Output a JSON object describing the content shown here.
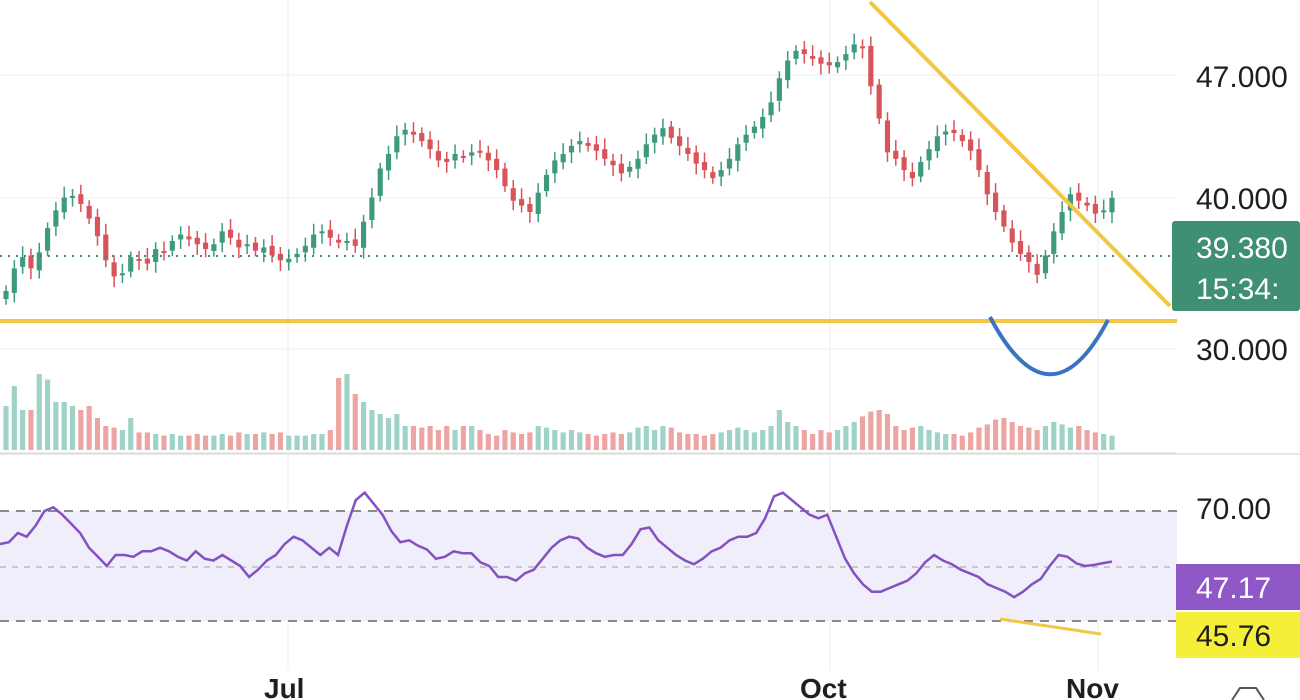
{
  "chart_data": [
    {
      "type": "candlestick",
      "title": "",
      "price_axis_ticks": [
        "47.000",
        "40.000",
        "30.000"
      ],
      "time_axis_ticks": [
        "Jul",
        "Oct",
        "Nov"
      ],
      "last_price_label": "39.380",
      "countdown_label": "15:34:",
      "colors": {
        "up": "#3e9a7f",
        "down": "#d9545a",
        "vol_up": "#9fd3c8",
        "vol_down": "#eda5a3",
        "price_badge": "#3e8f73",
        "trendline": "#f2c744",
        "arc": "#3a73c2"
      },
      "closes": [
        33.6,
        35,
        35.7,
        35,
        36,
        37.5,
        38.6,
        39.4,
        39.5,
        39,
        38.1,
        37,
        35.5,
        34.5,
        34.7,
        35.7,
        35.5,
        35.3,
        36.2,
        36,
        36.7,
        37.1,
        36.8,
        36.5,
        36.2,
        36.5,
        37.3,
        36.9,
        36.3,
        36.5,
        36.1,
        36.3,
        35.8,
        35.5,
        35.6,
        35.9,
        36.4,
        37.1,
        37.3,
        36.9,
        36.6,
        36.7,
        36.4,
        37.9,
        39.4,
        41.2,
        42.1,
        43.2,
        43.6,
        43.3,
        42.9,
        42.4,
        41.7,
        41.6,
        42.1,
        41.9,
        42.2,
        42.3,
        41.7,
        41.1,
        40.1,
        39.2,
        38.9,
        38.5,
        39.7,
        40.8,
        41.7,
        42.1,
        42.6,
        42.9,
        42.6,
        42.3,
        41.8,
        41.4,
        40.9,
        41.3,
        41.8,
        42.7,
        43.3,
        43.7,
        43.1,
        42.6,
        42.1,
        41.5,
        41.1,
        40.6,
        41.1,
        41.8,
        42.7,
        43.3,
        43.8,
        44.4,
        45.3,
        46.8,
        47.9,
        48.5,
        48.3,
        48,
        47.7,
        47.6,
        47.8,
        48.3,
        48.9,
        48.7,
        46.3,
        44.3,
        42.2,
        41.8,
        41.1,
        40.6,
        41.6,
        42.4,
        43.2,
        43.5,
        43.4,
        42.9,
        42.3,
        41.1,
        39.6,
        38.5,
        37.6,
        36.6,
        35.9,
        35.4,
        34.6,
        35.8,
        37.3,
        38.5,
        39.6,
        39.2,
        38.9,
        38.4,
        38.6,
        39.38
      ],
      "volumes": [
        0.55,
        0.8,
        0.5,
        0.5,
        0.95,
        0.88,
        0.6,
        0.6,
        0.55,
        0.5,
        0.55,
        0.4,
        0.3,
        0.28,
        0.25,
        0.4,
        0.22,
        0.22,
        0.2,
        0.18,
        0.2,
        0.18,
        0.18,
        0.2,
        0.18,
        0.18,
        0.2,
        0.18,
        0.22,
        0.2,
        0.2,
        0.22,
        0.2,
        0.22,
        0.18,
        0.18,
        0.18,
        0.2,
        0.2,
        0.25,
        0.9,
        0.95,
        0.7,
        0.6,
        0.5,
        0.45,
        0.4,
        0.45,
        0.3,
        0.3,
        0.28,
        0.3,
        0.25,
        0.3,
        0.25,
        0.3,
        0.3,
        0.25,
        0.2,
        0.18,
        0.25,
        0.22,
        0.2,
        0.22,
        0.3,
        0.28,
        0.25,
        0.22,
        0.25,
        0.22,
        0.2,
        0.18,
        0.2,
        0.22,
        0.2,
        0.22,
        0.28,
        0.3,
        0.25,
        0.3,
        0.28,
        0.22,
        0.2,
        0.2,
        0.18,
        0.2,
        0.22,
        0.25,
        0.28,
        0.25,
        0.22,
        0.25,
        0.3,
        0.5,
        0.35,
        0.3,
        0.25,
        0.2,
        0.25,
        0.22,
        0.25,
        0.3,
        0.35,
        0.42,
        0.48,
        0.5,
        0.45,
        0.3,
        0.25,
        0.28,
        0.3,
        0.25,
        0.22,
        0.2,
        0.2,
        0.18,
        0.22,
        0.28,
        0.32,
        0.38,
        0.4,
        0.35,
        0.3,
        0.28,
        0.25,
        0.3,
        0.35,
        0.32,
        0.28,
        0.3,
        0.25,
        0.22,
        0.2,
        0.18
      ],
      "rsi_axis_ticks": [
        "70.00"
      ],
      "rsi_labels": [
        "47.17",
        "45.76"
      ],
      "rsi_values": [
        61,
        61.5,
        64,
        63,
        66,
        70,
        71,
        69,
        66.5,
        64,
        60,
        57.5,
        55,
        58,
        58,
        57.5,
        59,
        59,
        60,
        59,
        57.5,
        56.5,
        59,
        57,
        56.5,
        58,
        56.5,
        55,
        52,
        54,
        56.5,
        58,
        61,
        63,
        62,
        60,
        58,
        60,
        58,
        66,
        73,
        75,
        72,
        69,
        64.5,
        61.5,
        62,
        60.5,
        59.5,
        57,
        57.5,
        59,
        58.5,
        58.5,
        56,
        55,
        52,
        52,
        51,
        53,
        54,
        57,
        60,
        62,
        63,
        62.5,
        60,
        58.5,
        57.5,
        58,
        58,
        61,
        65,
        65.5,
        62,
        60,
        58,
        56.5,
        55.5,
        57,
        59,
        60,
        62,
        63,
        63,
        64,
        68,
        74,
        75,
        73,
        71,
        69,
        68,
        69,
        63,
        57,
        53,
        50,
        48,
        48,
        49,
        50,
        51,
        53,
        56,
        58,
        56.5,
        55.5,
        54,
        53,
        52,
        50,
        49,
        48,
        46.5,
        48,
        50,
        51.5,
        55,
        58,
        57.5,
        55.7,
        55,
        55.3,
        55.8,
        56.2
      ]
    }
  ]
}
